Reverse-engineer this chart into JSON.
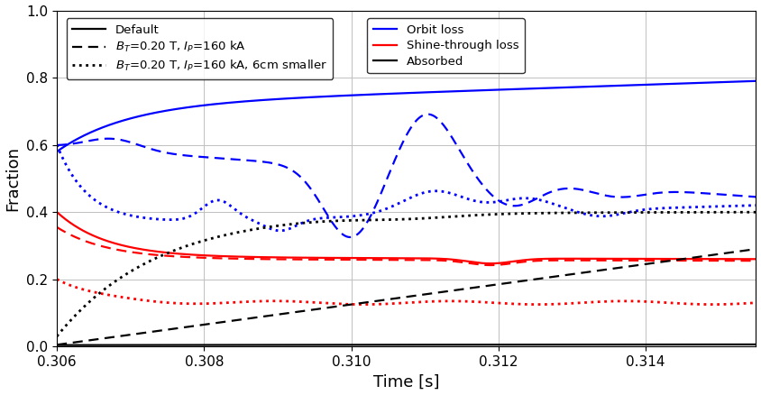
{
  "xlabel": "Time [s]",
  "ylabel": "Fraction",
  "xlim": [
    0.306,
    0.3155
  ],
  "ylim": [
    0.0,
    1.0
  ],
  "legend_left_labels": [
    "Default",
    "$B_T$=0.20 T, $I_P$=160 kA",
    "$B_T$=0.20 T, $I_P$=160 kA, 6cm smaller"
  ],
  "legend_right_labels": [
    "Orbit loss",
    "Shine-through loss",
    "Absorbed"
  ],
  "background_color": "#ffffff",
  "figsize": [
    8.44,
    4.38
  ],
  "dpi": 100
}
